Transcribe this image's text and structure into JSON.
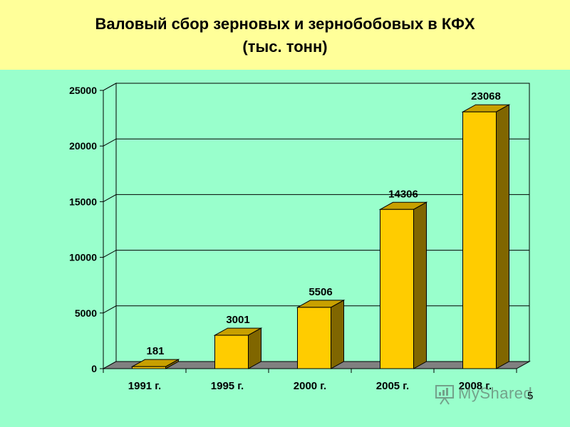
{
  "slide": {
    "title_line1": "Валовый сбор зерновых и зернобобовых в КФХ",
    "title_line2": "(тыс. тонн)",
    "page_number": "5",
    "watermark_text": "MyShared",
    "watermark_icon": "presentation-board-icon"
  },
  "colors": {
    "background": "#99ffcc",
    "title_band": "#ffff99",
    "bar_front": "#ffcc00",
    "bar_side": "#806600",
    "bar_top": "#c8a000",
    "floor": "#808080",
    "grid": "#000000"
  },
  "chart_data": {
    "type": "bar",
    "categories": [
      "1991 г.",
      "1995 г.",
      "2000 г.",
      "2005 г.",
      "2008 г."
    ],
    "values": [
      181,
      3001,
      5506,
      14306,
      23068
    ],
    "data_labels": [
      "181",
      "3001",
      "5506",
      "14306",
      "23068"
    ],
    "title": "Валовый сбор зерновых и зернобобовых в КФХ (тыс. тонн)",
    "xlabel": "",
    "ylabel": "",
    "ylim": [
      0,
      25000
    ],
    "y_ticks": [
      0,
      5000,
      10000,
      15000,
      20000,
      25000
    ],
    "y_tick_labels": [
      "0",
      "5000",
      "10000",
      "15000",
      "20000",
      "25000"
    ],
    "grid": true,
    "legend": "none",
    "style": "3d"
  }
}
